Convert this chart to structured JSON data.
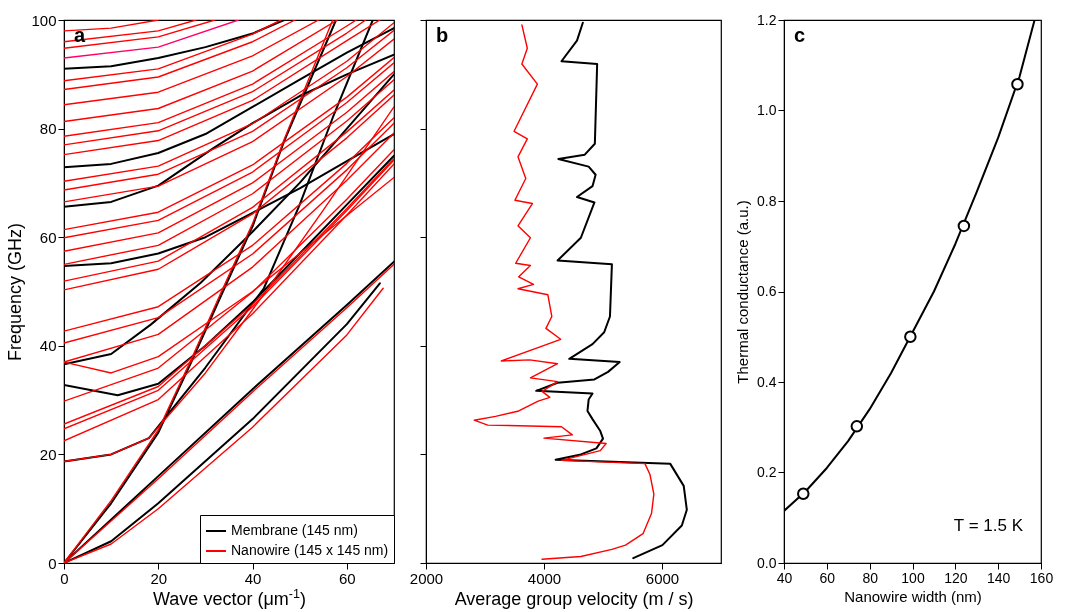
{
  "chart_data": [
    {
      "type": "line",
      "title": "a",
      "xlabel": "Wave vector (μm$^{-1}$)",
      "ylabel": "Frequency (GHz)",
      "xlim": [
        0,
        70
      ],
      "ylim": [
        0,
        100
      ],
      "xticks": [
        0,
        20,
        40,
        60
      ],
      "yticks": [
        0,
        20,
        40,
        60,
        80,
        100
      ],
      "legend": "bottom right",
      "series": [
        {
          "name": "Membrane (145 nm)",
          "color": "#000000",
          "x": [
            0,
            10,
            20,
            40,
            60,
            67
          ],
          "values": [
            0,
            4,
            11,
            26.5,
            44,
            51.5
          ]
        },
        {
          "color": "#000000",
          "x": [
            0,
            20,
            40,
            60,
            70
          ],
          "values": [
            0,
            16,
            32,
            47.5,
            55.5
          ]
        },
        {
          "color": "#000000",
          "x": [
            0,
            10,
            20,
            27,
            33.4,
            40,
            46.7,
            57.7
          ],
          "values": [
            0,
            11,
            24,
            37,
            49.4,
            62,
            77.7,
            100
          ]
        },
        {
          "color": "#000000",
          "x": [
            0,
            10,
            18,
            30,
            42.4,
            50,
            57,
            65.5
          ],
          "values": [
            18.7,
            20,
            23,
            36,
            50.6,
            66,
            82,
            100
          ]
        },
        {
          "color": "#000000",
          "x": [
            0,
            11.4,
            20,
            30,
            40,
            50,
            60,
            70
          ],
          "values": [
            32.8,
            30.9,
            33,
            40,
            48,
            57,
            66,
            75
          ]
        },
        {
          "color": "#000000",
          "x": [
            0,
            10,
            18.4,
            29,
            40,
            50,
            60,
            70
          ],
          "values": [
            36.6,
            38.5,
            43.9,
            51.6,
            61,
            70,
            80,
            90
          ]
        },
        {
          "color": "#000000",
          "x": [
            0,
            10,
            20,
            30,
            40,
            50,
            60,
            70
          ],
          "values": [
            54.7,
            55.2,
            57,
            60,
            64.5,
            69,
            74,
            79
          ]
        },
        {
          "color": "#000000",
          "x": [
            0,
            10,
            20,
            31.7,
            40,
            50,
            60,
            70
          ],
          "values": [
            65.6,
            66.5,
            69.5,
            76.4,
            81,
            86,
            90,
            93.6
          ]
        },
        {
          "color": "#000000",
          "x": [
            0,
            10,
            20,
            30,
            40,
            50,
            60,
            70
          ],
          "values": [
            72.9,
            73.5,
            75.5,
            79,
            84,
            89,
            94,
            98.5
          ]
        },
        {
          "color": "#000000",
          "x": [
            0,
            10,
            20,
            30,
            40,
            46.7
          ],
          "values": [
            91,
            91.5,
            93,
            95,
            97.5,
            100
          ]
        },
        {
          "name": "Nanowire (145 x 145 nm)",
          "color": "#ff0000",
          "x": [
            0,
            10,
            20,
            40,
            60,
            67.7
          ],
          "values": [
            0,
            3.5,
            10,
            25,
            42,
            50.6
          ]
        },
        {
          "color": "#ff0000",
          "x": [
            0,
            20,
            40,
            60,
            70
          ],
          "values": [
            0,
            15.5,
            31.5,
            47,
            55
          ]
        },
        {
          "color": "#ff0000",
          "x": [
            0,
            10,
            20,
            27,
            33.4,
            40,
            46.7,
            57
          ],
          "values": [
            0,
            11.5,
            24.5,
            37.5,
            50,
            62.5,
            78,
            100
          ]
        },
        {
          "color": "#ff0000",
          "x": [
            0,
            10,
            18,
            30,
            42,
            55,
            70
          ],
          "values": [
            18.7,
            20,
            23,
            35,
            49,
            65,
            84
          ]
        },
        {
          "color": "#ff0000",
          "x": [
            0,
            20,
            40,
            60,
            70
          ],
          "values": [
            22.5,
            30.1,
            45.9,
            64.1,
            73.5
          ]
        },
        {
          "color": "#ff0000",
          "x": [
            0,
            20,
            40,
            60,
            70
          ],
          "values": [
            24.7,
            31.8,
            47.2,
            64.9,
            74.2
          ]
        },
        {
          "color": "#ff0000",
          "x": [
            0,
            20,
            40,
            60,
            70
          ],
          "values": [
            25.6,
            32.5,
            47.6,
            65.3,
            74.5
          ]
        },
        {
          "color": "#ff0000",
          "x": [
            0,
            20,
            40,
            60,
            70
          ],
          "values": [
            29.8,
            35.9,
            49.9,
            67,
            76.1
          ]
        },
        {
          "color": "#ff0000",
          "x": [
            0,
            10,
            20,
            40,
            60,
            70
          ],
          "values": [
            37,
            35,
            38,
            50,
            64,
            71
          ]
        },
        {
          "color": "#ff0000",
          "x": [
            0,
            20,
            40,
            60,
            70
          ],
          "values": [
            37,
            42.1,
            54.5,
            70.5,
            79.2
          ]
        },
        {
          "color": "#ff0000",
          "x": [
            0,
            20,
            40,
            60,
            70
          ],
          "values": [
            40.5,
            45.2,
            56.9,
            72.4,
            81
          ]
        },
        {
          "color": "#ff0000",
          "x": [
            0,
            20,
            40,
            60,
            70
          ],
          "values": [
            42.7,
            47.2,
            58.5,
            73.6,
            82
          ]
        },
        {
          "color": "#ff0000",
          "x": [
            0,
            20,
            40,
            60,
            70
          ],
          "values": [
            50.3,
            54.1,
            64.3,
            78.3,
            86.2
          ]
        },
        {
          "color": "#ff0000",
          "x": [
            0,
            20,
            40,
            60,
            70
          ],
          "values": [
            51.9,
            55.6,
            65.5,
            79.4,
            87.1
          ]
        },
        {
          "color": "#ff0000",
          "x": [
            0,
            20,
            40,
            60,
            70
          ],
          "values": [
            55,
            58.5,
            68,
            81.4,
            89
          ]
        },
        {
          "color": "#ff0000",
          "x": [
            0,
            20,
            40,
            60,
            70
          ],
          "values": [
            57.4,
            60.8,
            70,
            83,
            90.5
          ]
        },
        {
          "color": "#ff0000",
          "x": [
            0,
            20,
            40,
            60,
            70
          ],
          "values": [
            59.9,
            63.1,
            72,
            84.8,
            92.1
          ]
        },
        {
          "color": "#ff0000",
          "x": [
            0,
            20,
            40,
            60,
            70
          ],
          "values": [
            61.4,
            64.6,
            73.3,
            85.8,
            93.1
          ]
        },
        {
          "color": "#ff0000",
          "x": [
            0,
            20,
            40,
            60,
            70
          ],
          "values": [
            66.5,
            69.4,
            77.6,
            89.6,
            96.5
          ]
        },
        {
          "color": "#ff0000",
          "x": [
            0,
            20,
            40,
            60,
            70
          ],
          "values": [
            68.7,
            71.6,
            79.5,
            91.2,
            98.1
          ]
        },
        {
          "color": "#ff0000",
          "x": [
            0,
            20,
            40,
            60,
            70
          ],
          "values": [
            70.3,
            73.1,
            80.9,
            92.4,
            99.5
          ]
        },
        {
          "color": "#ff0000",
          "x": [
            0,
            20,
            40,
            60,
            67
          ],
          "values": [
            75.2,
            77.8,
            85.2,
            96.2,
            100
          ]
        },
        {
          "color": "#ff0000",
          "x": [
            0,
            20,
            40,
            60,
            64
          ],
          "values": [
            77,
            79.6,
            86.8,
            97.6,
            100
          ]
        },
        {
          "color": "#ff0000",
          "x": [
            0,
            20,
            40,
            60,
            62
          ],
          "values": [
            78.6,
            81.1,
            88.2,
            98.9,
            100
          ]
        },
        {
          "color": "#ff0000",
          "x": [
            0,
            20,
            40,
            58
          ],
          "values": [
            81.3,
            83.7,
            90.6,
            100
          ]
        },
        {
          "color": "#ff0000",
          "x": [
            0,
            20,
            40,
            54
          ],
          "values": [
            84.4,
            86.7,
            93.4,
            100
          ]
        },
        {
          "color": "#ff0000",
          "x": [
            0,
            20,
            40,
            49
          ],
          "values": [
            87.2,
            89.5,
            96,
            100
          ]
        },
        {
          "color": "#ff0000",
          "x": [
            0,
            20,
            40,
            46
          ],
          "values": [
            88.8,
            91,
            97.4,
            100
          ]
        },
        {
          "color": "#ff0066",
          "x": [
            0,
            20,
            37
          ],
          "values": [
            93,
            95,
            100
          ]
        },
        {
          "color": "#ff0000",
          "x": [
            0,
            20,
            32
          ],
          "values": [
            94.8,
            96.9,
            100
          ]
        },
        {
          "color": "#ff0000",
          "x": [
            0,
            20,
            28
          ],
          "values": [
            96,
            98,
            100
          ]
        },
        {
          "color": "#ff0000",
          "x": [
            0,
            10,
            20
          ],
          "values": [
            98,
            98.5,
            100
          ]
        }
      ]
    },
    {
      "type": "line",
      "title": "b",
      "xlabel": "Average group velocity (m / s)",
      "xlim": [
        2000,
        7000
      ],
      "ylim": [
        0,
        100
      ],
      "xticks": [
        2000,
        4000,
        6000
      ],
      "yticks": [
        0,
        20,
        40,
        60,
        80,
        100
      ],
      "tick_labels": "x",
      "series": [
        {
          "color": "#000000",
          "x": [
            5513,
            6007,
            6336,
            6421,
            6368,
            6138,
            4197,
            4625,
            4888,
            5000,
            4954,
            4822,
            4737,
            4757,
            4822,
            3868,
            4230,
            4855,
            5086,
            5283,
            4428,
            4822,
            5020,
            5118,
            5151,
            4230,
            4625,
            4855,
            4559,
            4822,
            4875,
            4757,
            4243,
            4691,
            4862,
            4901,
            4296,
            4559,
            4658
          ],
          "values": [
            0.9,
            3.3,
            6.9,
            9.8,
            14.2,
            18.3,
            19,
            20,
            21.1,
            22.9,
            24.3,
            26.5,
            28,
            30.1,
            31.2,
            31.7,
            33.2,
            33.8,
            35.2,
            37,
            37.6,
            40.3,
            42.5,
            45.4,
            55,
            55.7,
            59.9,
            66.4,
            67.4,
            69.4,
            71.5,
            73,
            74.4,
            75.2,
            77.2,
            91.9,
            92.4,
            96.2,
            99.5
          ]
        },
        {
          "color": "#ff0000",
          "x": [
            3967,
            4625,
            5151,
            5382,
            5678,
            5822,
            5862,
            5796,
            5711,
            4296,
            4954,
            5053,
            4000,
            4480,
            4296,
            3046,
            2816,
            3178,
            3572,
            3901,
            4099,
            3967,
            4230,
            3770,
            4230,
            3757,
            3276,
            4283,
            4033,
            4132,
            4066,
            3559,
            3822,
            3572,
            3770,
            3520,
            3770,
            3559,
            3803,
            3507,
            3691,
            3559,
            3717,
            3493,
            3888,
            3625,
            3717,
            3625
          ],
          "values": [
            0.7,
            1.2,
            2.5,
            3.3,
            5.4,
            9.1,
            12.7,
            16.3,
            18.3,
            18.9,
            20.7,
            22,
            23,
            23.6,
            25.1,
            25.4,
            26.3,
            27,
            28,
            29.8,
            30.5,
            31.6,
            33.4,
            34.1,
            36.7,
            37.4,
            37.2,
            41.2,
            43.2,
            45.4,
            49.4,
            50.5,
            51.3,
            52.7,
            54.8,
            55.2,
            59.9,
            62.1,
            66.2,
            66.8,
            70.8,
            74.8,
            78.1,
            79.5,
            88.2,
            91.9,
            94.8,
            99.1
          ]
        }
      ]
    },
    {
      "type": "line",
      "title": "c",
      "xlabel": "Nanowire width (nm)",
      "ylabel": "Thermal conductance (a.u.)",
      "xlim": [
        40,
        160
      ],
      "ylim": [
        0,
        1.2
      ],
      "xticks": [
        40,
        60,
        80,
        100,
        120,
        140,
        160
      ],
      "yticks": [
        {
          "value": 0,
          "label": "0.0"
        },
        0.2,
        0.4,
        0.6,
        0.8,
        {
          "value": 1,
          "label": "1.0"
        },
        1.2
      ],
      "annotations": [
        "T = 1.5 K"
      ],
      "series": [
        {
          "color": "#000000",
          "x": [
            40,
            50,
            60,
            70,
            80,
            90,
            100,
            110,
            120,
            130,
            140,
            150,
            157
          ],
          "values": [
            0.115,
            0.158,
            0.21,
            0.27,
            0.34,
            0.42,
            0.51,
            0.6,
            0.705,
            0.82,
            0.94,
            1.075,
            1.2
          ]
        },
        {
          "type": "scatter",
          "marker": "circle",
          "color": "#000000",
          "x": [
            49,
            74,
            99,
            124,
            149
          ],
          "values": [
            0.153,
            0.302,
            0.5,
            0.745,
            1.058
          ]
        }
      ]
    }
  ]
}
